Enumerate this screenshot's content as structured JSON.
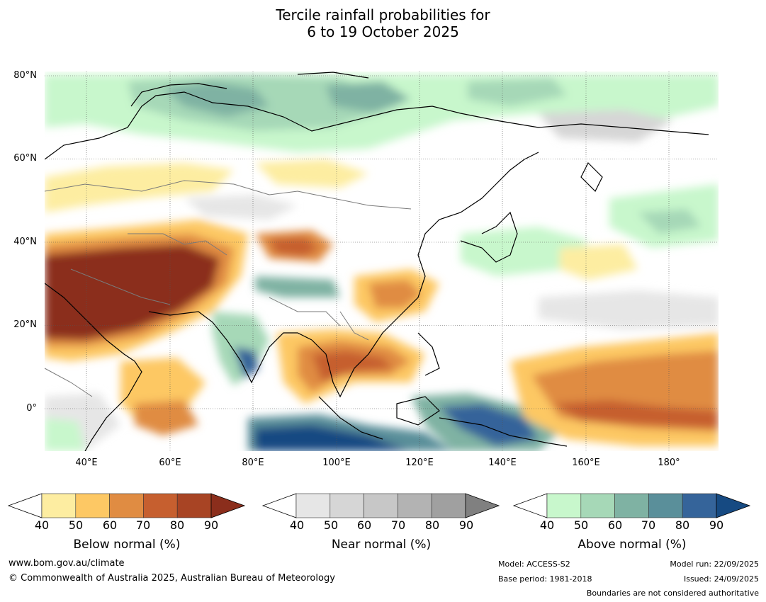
{
  "title": {
    "line1": "Tercile rainfall probabilities for",
    "line2": "6 to 19 October 2025"
  },
  "map": {
    "lat_labels": [
      "80°N",
      "60°N",
      "40°N",
      "20°N",
      "0°"
    ],
    "lon_labels": [
      "40°E",
      "60°E",
      "80°E",
      "100°E",
      "120°E",
      "140°E",
      "160°E",
      "180°"
    ],
    "lat_range": [
      -10,
      80
    ],
    "lon_range": [
      30,
      190
    ]
  },
  "colorbars": [
    {
      "name": "below",
      "label": "Below normal (%)",
      "ticks": [
        "40",
        "50",
        "60",
        "70",
        "80",
        "90"
      ],
      "colors": [
        "#ffffff",
        "#fdeda1",
        "#fdc864",
        "#e08c42",
        "#c65f2f",
        "#a84424",
        "#8b2e1c"
      ]
    },
    {
      "name": "near",
      "label": "Near normal (%)",
      "ticks": [
        "40",
        "50",
        "60",
        "70",
        "80",
        "90"
      ],
      "colors": [
        "#ffffff",
        "#e6e6e6",
        "#d6d6d6",
        "#c7c7c7",
        "#b3b3b3",
        "#a0a0a0",
        "#808080"
      ]
    },
    {
      "name": "above",
      "label": "Above normal (%)",
      "ticks": [
        "40",
        "50",
        "60",
        "70",
        "80",
        "90"
      ],
      "colors": [
        "#ffffff",
        "#c8f7cc",
        "#a6d8b7",
        "#7fb2a3",
        "#5a8f9a",
        "#35649a",
        "#164a82"
      ]
    }
  ],
  "footer": {
    "website": "www.bom.gov.au/climate",
    "copyright": "© Commonwealth of Australia 2025, Australian Bureau of Meteorology",
    "model": "Model: ACCESS-S2",
    "base_period": "Base period: 1981-2018",
    "model_run": "Model run: 22/09/2025",
    "issued": "Issued: 24/09/2025",
    "disclaimer": "Boundaries are not considered authoritative"
  }
}
